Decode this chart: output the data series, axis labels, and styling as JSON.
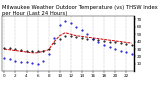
{
  "title": "Milwaukee Weather Outdoor Temperature (vs) THSW Index per Hour (Last 24 Hours)",
  "background_color": "#ffffff",
  "grid_color": "#888888",
  "hours": [
    0,
    1,
    2,
    3,
    4,
    5,
    6,
    7,
    8,
    9,
    10,
    11,
    12,
    13,
    14,
    15,
    16,
    17,
    18,
    19,
    20,
    21,
    22,
    23
  ],
  "temp_outdoor": [
    32,
    31,
    30,
    29,
    28,
    27,
    27,
    28,
    30,
    38,
    44,
    48,
    47,
    46,
    45,
    44,
    43,
    42,
    41,
    40,
    39,
    38,
    37,
    36
  ],
  "thsw_index": [
    18,
    16,
    14,
    13,
    12,
    11,
    10,
    14,
    24,
    45,
    62,
    68,
    65,
    60,
    56,
    50,
    44,
    40,
    36,
    33,
    30,
    28,
    26,
    24
  ],
  "heat_index": [
    30,
    29,
    28,
    27,
    26,
    25,
    25,
    27,
    29,
    40,
    48,
    52,
    50,
    48,
    47,
    46,
    45,
    44,
    43,
    42,
    41,
    40,
    39,
    38
  ],
  "line_color_outdoor": "#000000",
  "line_color_thsw": "#0000cc",
  "line_color_heat": "#cc0000",
  "ylim_min": 0,
  "ylim_max": 75,
  "ytick_values": [
    10,
    20,
    30,
    40,
    50,
    60,
    70
  ],
  "ytick_labels": [
    "10",
    "20",
    "30",
    "40",
    "50",
    "60",
    "70"
  ],
  "xtick_positions": [
    0,
    2,
    4,
    6,
    8,
    10,
    12,
    14,
    16,
    18,
    20,
    22
  ],
  "xtick_labels": [
    "0",
    "2",
    "4",
    "6",
    "8",
    "10",
    "12",
    "14",
    "16",
    "18",
    "20",
    "22"
  ],
  "vgrid_positions": [
    0,
    2,
    4,
    6,
    8,
    10,
    12,
    14,
    16,
    18,
    20,
    22
  ],
  "title_fontsize": 3.8,
  "tick_fontsize": 3.0,
  "lw_solid": 0.7,
  "lw_dot": 0.5
}
